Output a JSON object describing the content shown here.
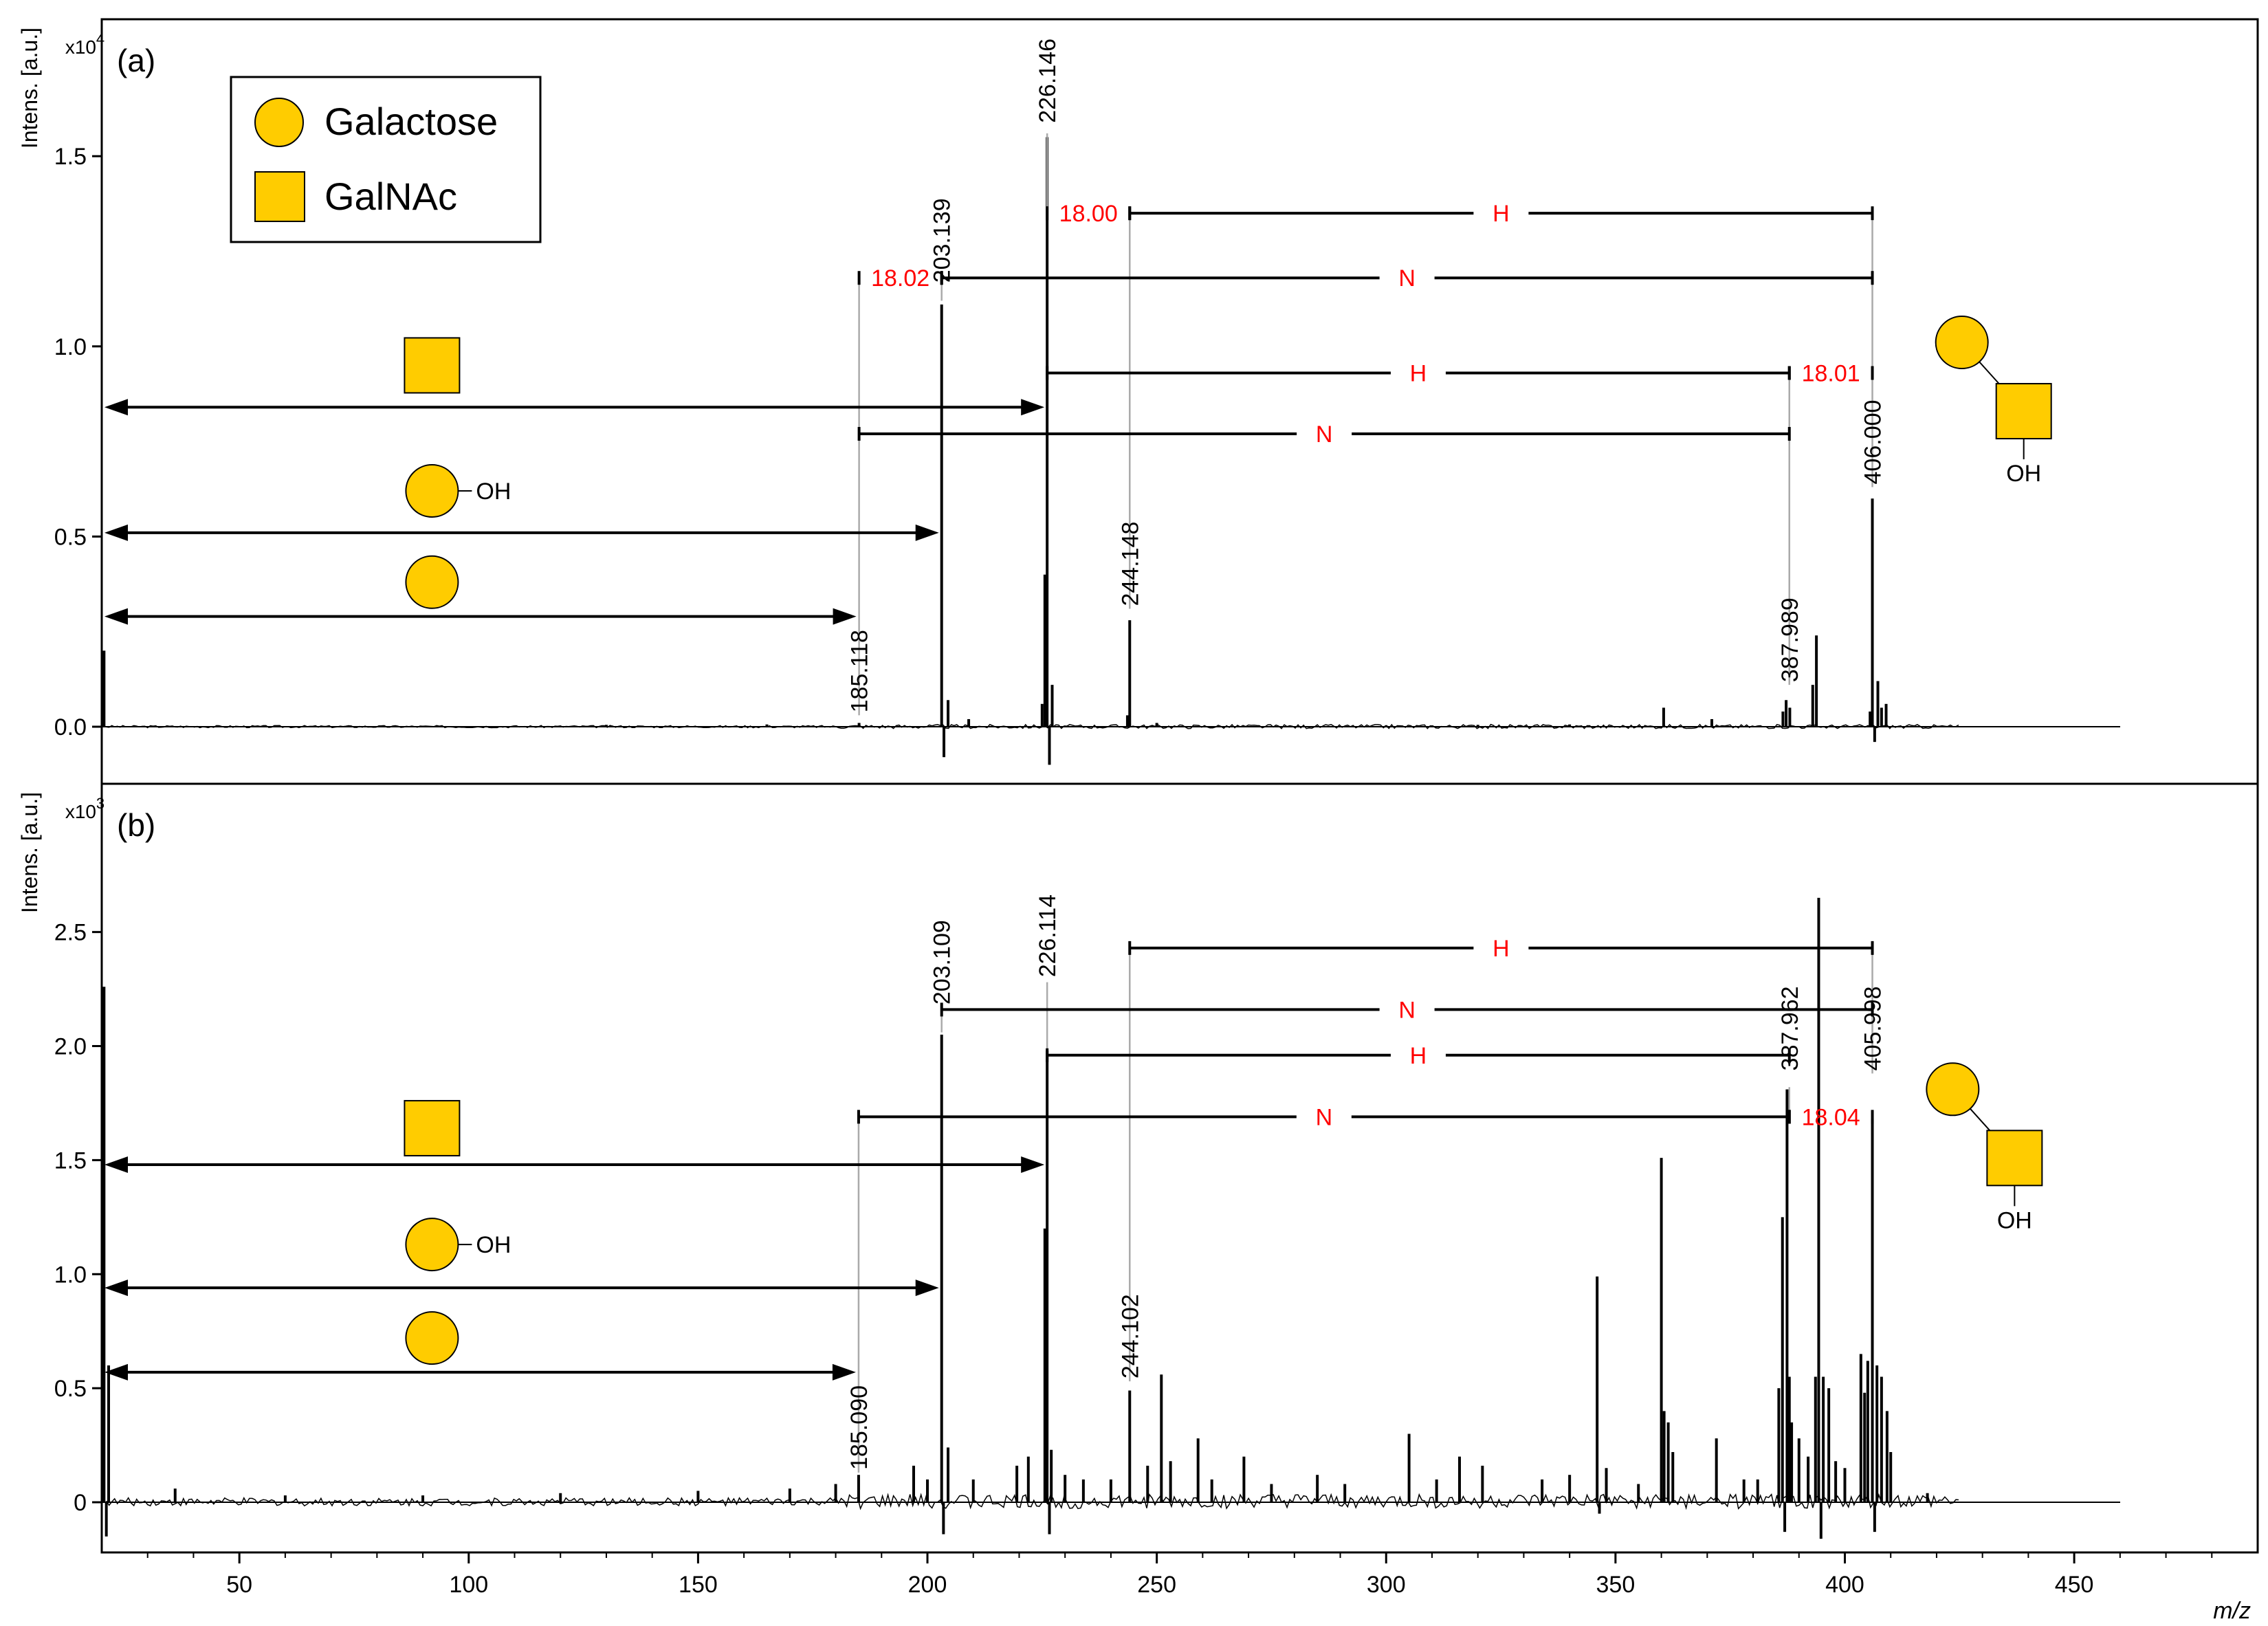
{
  "colors": {
    "glycan_fill": "#FFCC00",
    "glycan_stroke": "#000000",
    "highlight_text": "#FF0000",
    "spectrum": "#000000",
    "guide_line": "#AAAAAA",
    "axis": "#000000"
  },
  "legend": {
    "items": [
      {
        "symbol": "circle",
        "label": "Galactose"
      },
      {
        "symbol": "square",
        "label": "GalNAc"
      }
    ]
  },
  "chart_data": [
    {
      "type": "line",
      "panel_label": "(a)",
      "ylabel": "Intens. [a.u.]",
      "yscale_label": "x10",
      "yscale_exp": "4",
      "ylim": [
        -0.15,
        1.86
      ],
      "yticks": [
        0.0,
        0.5,
        1.0,
        1.5
      ],
      "ytick_labels": [
        "0.0",
        "0.5",
        "1.0",
        "1.5"
      ],
      "xlim": [
        20,
        490
      ],
      "peaks": [
        {
          "x": 20.5,
          "y": 0.2
        },
        {
          "x": 185.1,
          "y": 0.01
        },
        {
          "x": 203.1,
          "y": 1.11
        },
        {
          "x": 203.6,
          "y": -0.08
        },
        {
          "x": 204.5,
          "y": 0.07
        },
        {
          "x": 225.0,
          "y": 0.06
        },
        {
          "x": 225.6,
          "y": 0.4
        },
        {
          "x": 226.1,
          "y": 1.55
        },
        {
          "x": 226.6,
          "y": -0.1
        },
        {
          "x": 227.2,
          "y": 0.11
        },
        {
          "x": 244.1,
          "y": 0.28
        },
        {
          "x": 243.6,
          "y": 0.03
        },
        {
          "x": 360.5,
          "y": 0.05
        },
        {
          "x": 371.0,
          "y": 0.02
        },
        {
          "x": 386.5,
          "y": 0.04
        },
        {
          "x": 387.2,
          "y": 0.07
        },
        {
          "x": 388.0,
          "y": 0.05
        },
        {
          "x": 393.0,
          "y": 0.11
        },
        {
          "x": 393.8,
          "y": 0.24
        },
        {
          "x": 405.5,
          "y": 0.04
        },
        {
          "x": 406.0,
          "y": 0.6
        },
        {
          "x": 406.5,
          "y": -0.04
        },
        {
          "x": 407.2,
          "y": 0.12
        },
        {
          "x": 408.0,
          "y": 0.05
        },
        {
          "x": 409.0,
          "y": 0.06
        },
        {
          "x": 130.0,
          "y": 0.005
        },
        {
          "x": 165.0,
          "y": 0.006
        },
        {
          "x": 209.0,
          "y": 0.02
        },
        {
          "x": 250.0,
          "y": 0.01
        },
        {
          "x": 300.0,
          "y": 0.004
        },
        {
          "x": 320.0,
          "y": 0.005
        },
        {
          "x": 340.0,
          "y": 0.006
        }
      ],
      "peak_labels": [
        {
          "text": "185.118",
          "x": 185.1,
          "y": 0.03
        },
        {
          "text": "203.139",
          "x": 203.1,
          "y": 1.16
        },
        {
          "text": "226.146",
          "x": 226.1,
          "y": 1.58
        },
        {
          "text": "244.148",
          "x": 244.1,
          "y": 0.31
        },
        {
          "text": "387.989",
          "x": 387.9,
          "y": 0.11
        },
        {
          "text": "406.000",
          "x": 406.0,
          "y": 0.63
        }
      ],
      "guides": [
        {
          "x": 185.1,
          "y_bottom": 0.03,
          "y_top": 1.19
        },
        {
          "x": 203.1,
          "y_bottom": 1.12,
          "y_top": 1.19
        },
        {
          "x": 226.1,
          "y_bottom": 1.56,
          "y_top": 1.35
        },
        {
          "x": 244.1,
          "y_bottom": 0.31,
          "y_top": 1.35
        },
        {
          "x": 387.9,
          "y_bottom": 0.11,
          "y_top": 0.93
        },
        {
          "x": 406.0,
          "y_bottom": 0.63,
          "y_top": 1.35
        }
      ],
      "intervals": [
        {
          "x1": 244.1,
          "x2": 406.0,
          "y": 1.35,
          "label": "H",
          "red": false
        },
        {
          "x1": 226.1,
          "x2": 244.1,
          "y": 1.35,
          "label": "18.00",
          "red": true
        },
        {
          "x1": 203.1,
          "x2": 406.0,
          "y": 1.18,
          "label": "N",
          "red": false
        },
        {
          "x1": 185.1,
          "x2": 203.1,
          "y": 1.18,
          "label": "18.02",
          "red": true
        },
        {
          "x1": 226.1,
          "x2": 387.9,
          "y": 0.93,
          "label": "H",
          "red": false
        },
        {
          "x1": 387.9,
          "x2": 406.0,
          "y": 0.93,
          "label": "18.01",
          "red": true
        },
        {
          "x1": 185.1,
          "x2": 387.9,
          "y": 0.77,
          "label": "N",
          "red": false
        }
      ],
      "arrows": [
        {
          "x1": 20,
          "x2": 226.1,
          "y": 0.84
        },
        {
          "x1": 20,
          "x2": 203.1,
          "y": 0.51
        },
        {
          "x1": 20,
          "x2": 185.1,
          "y": 0.29
        }
      ],
      "symbols": [
        {
          "shape": "square",
          "x": 92,
          "y": 0.95,
          "text": ""
        },
        {
          "shape": "circle",
          "x": 92,
          "y": 0.62,
          "text": "OH"
        },
        {
          "shape": "circle",
          "x": 92,
          "y": 0.38,
          "text": ""
        }
      ],
      "glycan": {
        "x": 436,
        "y": 0.92,
        "text": "OH"
      }
    },
    {
      "type": "line",
      "panel_label": "(b)",
      "ylabel": "Intens. [a.u.]",
      "yscale_label": "x10",
      "yscale_exp": "3",
      "ylim": [
        -0.22,
        3.15
      ],
      "yticks": [
        0,
        0.5,
        1.0,
        1.5,
        2.0,
        2.5
      ],
      "ytick_labels": [
        "0",
        "0.5",
        "1.0",
        "1.5",
        "2.0",
        "2.5"
      ],
      "xlim": [
        20,
        490
      ],
      "xticks": [
        50,
        100,
        150,
        200,
        250,
        300,
        350,
        400,
        450
      ],
      "xtick_labels": [
        "50",
        "100",
        "150",
        "200",
        "250",
        "300",
        "350",
        "400",
        "450"
      ],
      "xlabel": "m/z",
      "peaks": [
        {
          "x": 20.5,
          "y": 2.26
        },
        {
          "x": 21.0,
          "y": -0.15
        },
        {
          "x": 21.5,
          "y": 0.6
        },
        {
          "x": 185.0,
          "y": 0.12
        },
        {
          "x": 197.0,
          "y": 0.16
        },
        {
          "x": 200.0,
          "y": 0.1
        },
        {
          "x": 203.1,
          "y": 2.05
        },
        {
          "x": 203.5,
          "y": -0.14
        },
        {
          "x": 204.5,
          "y": 0.24
        },
        {
          "x": 219.5,
          "y": 0.16
        },
        {
          "x": 222.0,
          "y": 0.2
        },
        {
          "x": 225.6,
          "y": 1.2
        },
        {
          "x": 226.1,
          "y": 1.98
        },
        {
          "x": 226.6,
          "y": -0.14
        },
        {
          "x": 227.0,
          "y": 0.23
        },
        {
          "x": 230.0,
          "y": 0.12
        },
        {
          "x": 240.0,
          "y": 0.1
        },
        {
          "x": 244.1,
          "y": 0.49
        },
        {
          "x": 248.0,
          "y": 0.16
        },
        {
          "x": 251.0,
          "y": 0.56
        },
        {
          "x": 253.0,
          "y": 0.18
        },
        {
          "x": 259.0,
          "y": 0.28
        },
        {
          "x": 262.0,
          "y": 0.1
        },
        {
          "x": 269.0,
          "y": 0.2
        },
        {
          "x": 275.0,
          "y": 0.08
        },
        {
          "x": 285.0,
          "y": 0.12
        },
        {
          "x": 291.0,
          "y": 0.08
        },
        {
          "x": 305.0,
          "y": 0.3
        },
        {
          "x": 311.0,
          "y": 0.1
        },
        {
          "x": 316.0,
          "y": 0.2
        },
        {
          "x": 321.0,
          "y": 0.16
        },
        {
          "x": 334.0,
          "y": 0.1
        },
        {
          "x": 340.0,
          "y": 0.12
        },
        {
          "x": 346.0,
          "y": 0.99
        },
        {
          "x": 346.5,
          "y": -0.05
        },
        {
          "x": 348.0,
          "y": 0.15
        },
        {
          "x": 355.0,
          "y": 0.08
        },
        {
          "x": 360.0,
          "y": 1.51
        },
        {
          "x": 360.6,
          "y": 0.4
        },
        {
          "x": 361.5,
          "y": 0.35
        },
        {
          "x": 362.5,
          "y": 0.22
        },
        {
          "x": 372.0,
          "y": 0.28
        },
        {
          "x": 378.0,
          "y": 0.1
        },
        {
          "x": 381.0,
          "y": 0.1
        },
        {
          "x": 385.6,
          "y": 0.5
        },
        {
          "x": 386.4,
          "y": 1.25
        },
        {
          "x": 386.9,
          "y": -0.13
        },
        {
          "x": 387.4,
          "y": 1.81
        },
        {
          "x": 387.9,
          "y": 0.55
        },
        {
          "x": 388.4,
          "y": 0.35
        },
        {
          "x": 390.0,
          "y": 0.28
        },
        {
          "x": 392.0,
          "y": 0.2
        },
        {
          "x": 393.6,
          "y": 0.55
        },
        {
          "x": 394.3,
          "y": 2.65
        },
        {
          "x": 394.8,
          "y": -0.16
        },
        {
          "x": 395.3,
          "y": 0.55
        },
        {
          "x": 396.5,
          "y": 0.5
        },
        {
          "x": 398.0,
          "y": 0.18
        },
        {
          "x": 400.0,
          "y": 0.15
        },
        {
          "x": 403.5,
          "y": 0.65
        },
        {
          "x": 404.3,
          "y": 0.48
        },
        {
          "x": 405.0,
          "y": 0.62
        },
        {
          "x": 406.0,
          "y": 1.68
        },
        {
          "x": 406.5,
          "y": -0.13
        },
        {
          "x": 407.0,
          "y": 0.6
        },
        {
          "x": 408.0,
          "y": 0.55
        },
        {
          "x": 409.2,
          "y": 0.4
        },
        {
          "x": 410.0,
          "y": 0.22
        },
        {
          "x": 418.0,
          "y": 0.04
        },
        {
          "x": 36.0,
          "y": 0.06
        },
        {
          "x": 60.0,
          "y": 0.03
        },
        {
          "x": 90.0,
          "y": 0.03
        },
        {
          "x": 120.0,
          "y": 0.04
        },
        {
          "x": 150.0,
          "y": 0.05
        },
        {
          "x": 170.0,
          "y": 0.06
        },
        {
          "x": 180.0,
          "y": 0.08
        },
        {
          "x": 210.0,
          "y": 0.1
        },
        {
          "x": 234.0,
          "y": 0.1
        }
      ],
      "peak_labels": [
        {
          "text": "185.090",
          "x": 185.0,
          "y": 0.13
        },
        {
          "text": "203.109",
          "x": 203.1,
          "y": 2.17
        },
        {
          "text": "226.114",
          "x": 226.1,
          "y": 2.29
        },
        {
          "text": "244.102",
          "x": 244.1,
          "y": 0.53
        },
        {
          "text": "387.962",
          "x": 387.9,
          "y": 1.88
        },
        {
          "text": "405.998",
          "x": 406.0,
          "y": 1.88
        }
      ],
      "guides": [
        {
          "x": 185.0,
          "y_bottom": 0.13,
          "y_top": 1.69
        },
        {
          "x": 203.1,
          "y_bottom": 2.06,
          "y_top": 2.17
        },
        {
          "x": 226.1,
          "y_bottom": 1.99,
          "y_top": 2.28
        },
        {
          "x": 244.1,
          "y_bottom": 0.53,
          "y_top": 2.43
        },
        {
          "x": 387.9,
          "y_bottom": 1.82,
          "y_top": 1.69
        },
        {
          "x": 406.0,
          "y_bottom": 1.88,
          "y_top": 2.43
        }
      ],
      "intervals": [
        {
          "x1": 244.1,
          "x2": 406.0,
          "y": 2.43,
          "label": "H",
          "red": false
        },
        {
          "x1": 203.1,
          "x2": 406.0,
          "y": 2.16,
          "label": "N",
          "red": false
        },
        {
          "x1": 226.1,
          "x2": 387.9,
          "y": 1.96,
          "label": "H",
          "red": false
        },
        {
          "x1": 185.0,
          "x2": 387.9,
          "y": 1.69,
          "label": "N",
          "red": false
        },
        {
          "x1": 387.9,
          "x2": 406.0,
          "y": 1.69,
          "label": "18.04",
          "red": true
        }
      ],
      "arrows": [
        {
          "x1": 20,
          "x2": 226.1,
          "y": 1.48
        },
        {
          "x1": 20,
          "x2": 203.1,
          "y": 0.94
        },
        {
          "x1": 20,
          "x2": 185.0,
          "y": 0.57
        }
      ],
      "symbols": [
        {
          "shape": "square",
          "x": 92,
          "y": 1.64,
          "text": ""
        },
        {
          "shape": "circle",
          "x": 92,
          "y": 1.13,
          "text": "OH"
        },
        {
          "shape": "circle",
          "x": 92,
          "y": 0.72,
          "text": ""
        }
      ],
      "glycan": {
        "x": 434,
        "y": 1.66,
        "text": "OH"
      }
    }
  ]
}
